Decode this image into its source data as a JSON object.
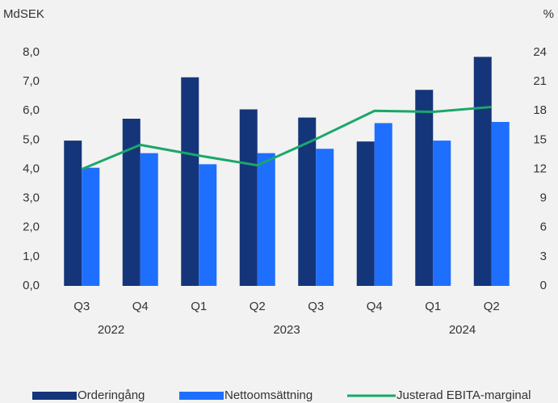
{
  "chart_data": {
    "type": "bar-line",
    "y_label": "MdSEK",
    "y2_label": "%",
    "categories": [
      "Q3",
      "Q4",
      "Q1",
      "Q2",
      "Q3",
      "Q4",
      "Q1",
      "Q2"
    ],
    "x_groups": [
      {
        "label": "2022",
        "start": 0,
        "end": 1
      },
      {
        "label": "2023",
        "start": 2,
        "end": 5
      },
      {
        "label": "2024",
        "start": 6,
        "end": 7
      }
    ],
    "series": [
      {
        "name": "Orderingång",
        "color": "#15357a",
        "kind": "bar",
        "values": [
          4.98,
          5.73,
          7.15,
          6.05,
          5.77,
          4.95,
          6.72,
          7.85
        ]
      },
      {
        "name": "Nettoomsättning",
        "color": "#1f6fff",
        "kind": "bar",
        "values": [
          4.05,
          4.55,
          4.17,
          4.55,
          4.7,
          5.58,
          4.98,
          5.62
        ]
      },
      {
        "name": "Justerad EBITA-marginal",
        "color": "#1aa76a",
        "kind": "line",
        "axis": "y2",
        "values": [
          12.0,
          14.5,
          13.4,
          12.4,
          15.1,
          18.0,
          17.9,
          18.4
        ]
      }
    ],
    "ylim": [
      0,
      8
    ],
    "yticks": [
      {
        "value": 0,
        "label": "0,0"
      },
      {
        "value": 1,
        "label": "1,0"
      },
      {
        "value": 2,
        "label": "2,0"
      },
      {
        "value": 3,
        "label": "3,0"
      },
      {
        "value": 4,
        "label": "4,0"
      },
      {
        "value": 5,
        "label": "5,0"
      },
      {
        "value": 6,
        "label": "6,0"
      },
      {
        "value": 7,
        "label": "7,0"
      },
      {
        "value": 8,
        "label": "8,0"
      }
    ],
    "y2lim": [
      0,
      24
    ],
    "y2ticks": [
      0,
      3,
      6,
      9,
      12,
      15,
      18,
      21,
      24
    ],
    "grid": false,
    "legend": "bottom"
  }
}
